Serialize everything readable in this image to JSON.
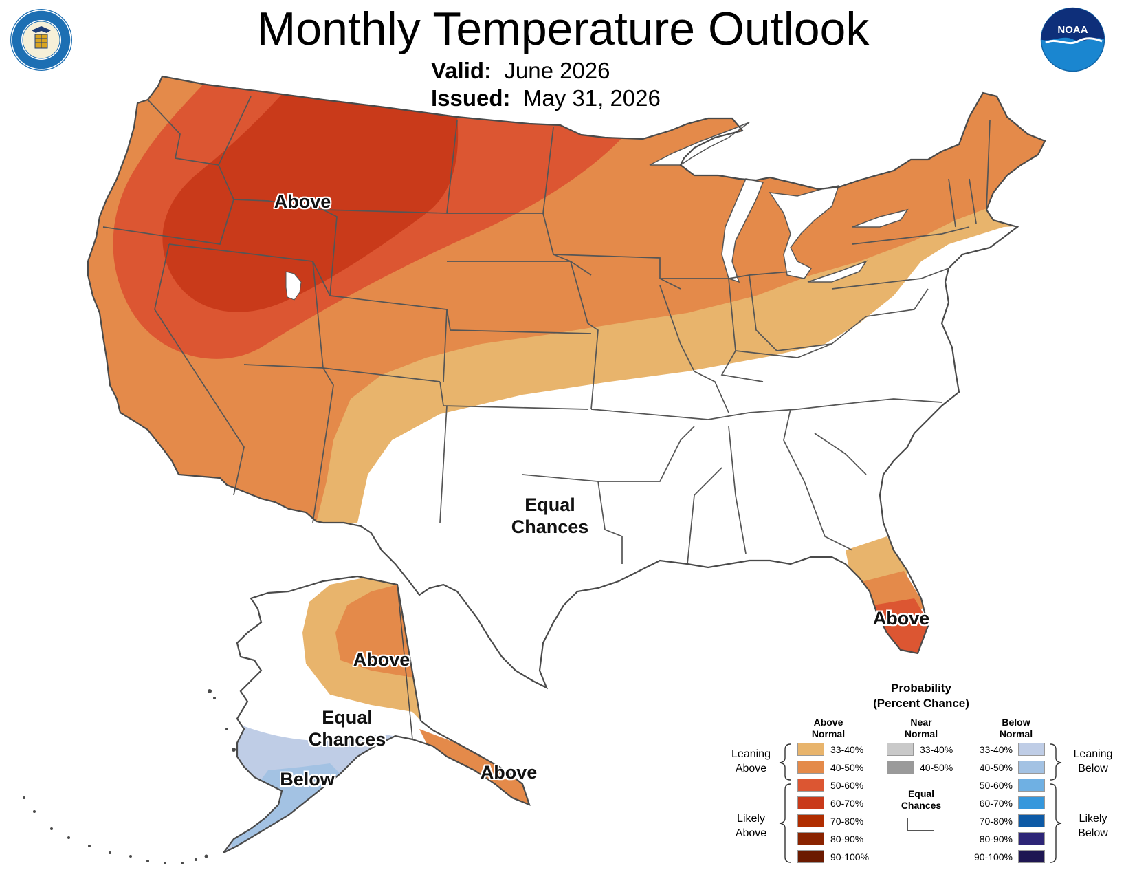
{
  "title": "Monthly Temperature Outlook",
  "valid_label": "Valid:",
  "valid_value": "June 2026",
  "issued_label": "Issued:",
  "issued_value": "May 31, 2026",
  "logos": {
    "left": "department-of-commerce-seal",
    "right": "noaa-logo",
    "noaa_text": "NOAA",
    "commerce_ring_top": "DEPARTMENT OF COMMERCE",
    "commerce_ring_bottom": "UNITED STATES OF AMERICA"
  },
  "map_labels": {
    "conus_above": "Above",
    "conus_equal": [
      "Equal",
      "Chances"
    ],
    "florida_above": "Above",
    "alaska_above_north": "Above",
    "alaska_equal": [
      "Equal",
      "Chances"
    ],
    "alaska_below": "Below",
    "alaska_above_south": "Above"
  },
  "legend": {
    "title": [
      "Probability",
      "(Percent Chance)"
    ],
    "above_head": [
      "Above",
      "Normal"
    ],
    "near_head": [
      "Near",
      "Normal"
    ],
    "below_head": [
      "Below",
      "Normal"
    ],
    "leaning_above": [
      "Leaning",
      "Above"
    ],
    "likely_above": [
      "Likely",
      "Above"
    ],
    "leaning_below": [
      "Leaning",
      "Below"
    ],
    "likely_below": [
      "Likely",
      "Below"
    ],
    "equal_chances": [
      "Equal",
      "Chances"
    ],
    "above": [
      {
        "range": "33-40%",
        "color": "#e8b46c"
      },
      {
        "range": "40-50%",
        "color": "#e48a4a"
      },
      {
        "range": "50-60%",
        "color": "#dc5632"
      },
      {
        "range": "60-70%",
        "color": "#c93a1a"
      },
      {
        "range": "70-80%",
        "color": "#b02d00"
      },
      {
        "range": "80-90%",
        "color": "#8a2300"
      },
      {
        "range": "90-100%",
        "color": "#6b1a00"
      }
    ],
    "near": [
      {
        "range": "33-40%",
        "color": "#c9c9c9"
      },
      {
        "range": "40-50%",
        "color": "#9a9a9a"
      }
    ],
    "below": [
      {
        "range": "33-40%",
        "color": "#bfcde6"
      },
      {
        "range": "40-50%",
        "color": "#a3c2e3"
      },
      {
        "range": "50-60%",
        "color": "#6fb0e3"
      },
      {
        "range": "60-70%",
        "color": "#3597dc"
      },
      {
        "range": "70-80%",
        "color": "#0d5aa6"
      },
      {
        "range": "80-90%",
        "color": "#2d2577"
      },
      {
        "range": "90-100%",
        "color": "#1e1652"
      }
    ],
    "equal_color": "#ffffff"
  }
}
